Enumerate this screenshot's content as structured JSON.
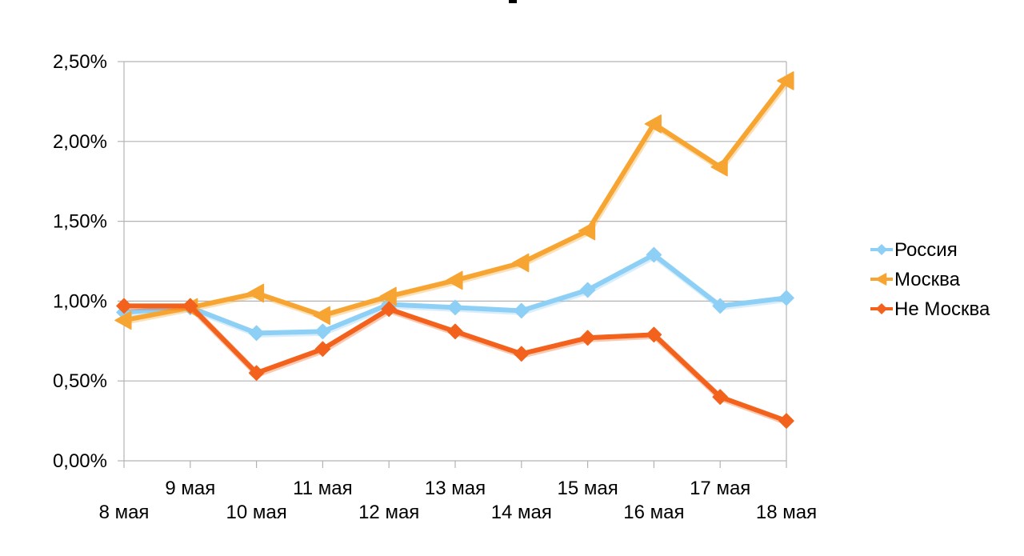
{
  "chart_data": {
    "type": "line",
    "title": "",
    "xlabel": "",
    "ylabel": "",
    "categories": [
      "8 мая",
      "9 мая",
      "10 мая",
      "11 мая",
      "12 мая",
      "13 мая",
      "14 мая",
      "15 мая",
      "16 мая",
      "17 мая",
      "18 мая"
    ],
    "ylim": [
      0,
      2.5
    ],
    "yticks": [
      0,
      0.5,
      1.0,
      1.5,
      2.0,
      2.5
    ],
    "ytick_labels": [
      "0,00%",
      "0,50%",
      "1,00%",
      "1,50%",
      "2,00%",
      "2,50%"
    ],
    "grid": true,
    "legend_position": "right",
    "series": [
      {
        "name": "Россия",
        "color": "#8ecff5",
        "marker": "diamond",
        "values": [
          0.93,
          0.96,
          0.8,
          0.81,
          0.98,
          0.96,
          0.94,
          1.07,
          1.29,
          0.97,
          1.02
        ]
      },
      {
        "name": "Москва",
        "color": "#f7a532",
        "marker": "triangle-left",
        "values": [
          0.88,
          0.96,
          1.05,
          0.91,
          1.03,
          1.13,
          1.24,
          1.44,
          2.11,
          1.84,
          2.38
        ]
      },
      {
        "name": "Не Москва",
        "color": "#f3621c",
        "marker": "diamond",
        "values": [
          0.97,
          0.97,
          0.55,
          0.7,
          0.95,
          0.81,
          0.67,
          0.77,
          0.79,
          0.4,
          0.25
        ]
      }
    ]
  }
}
